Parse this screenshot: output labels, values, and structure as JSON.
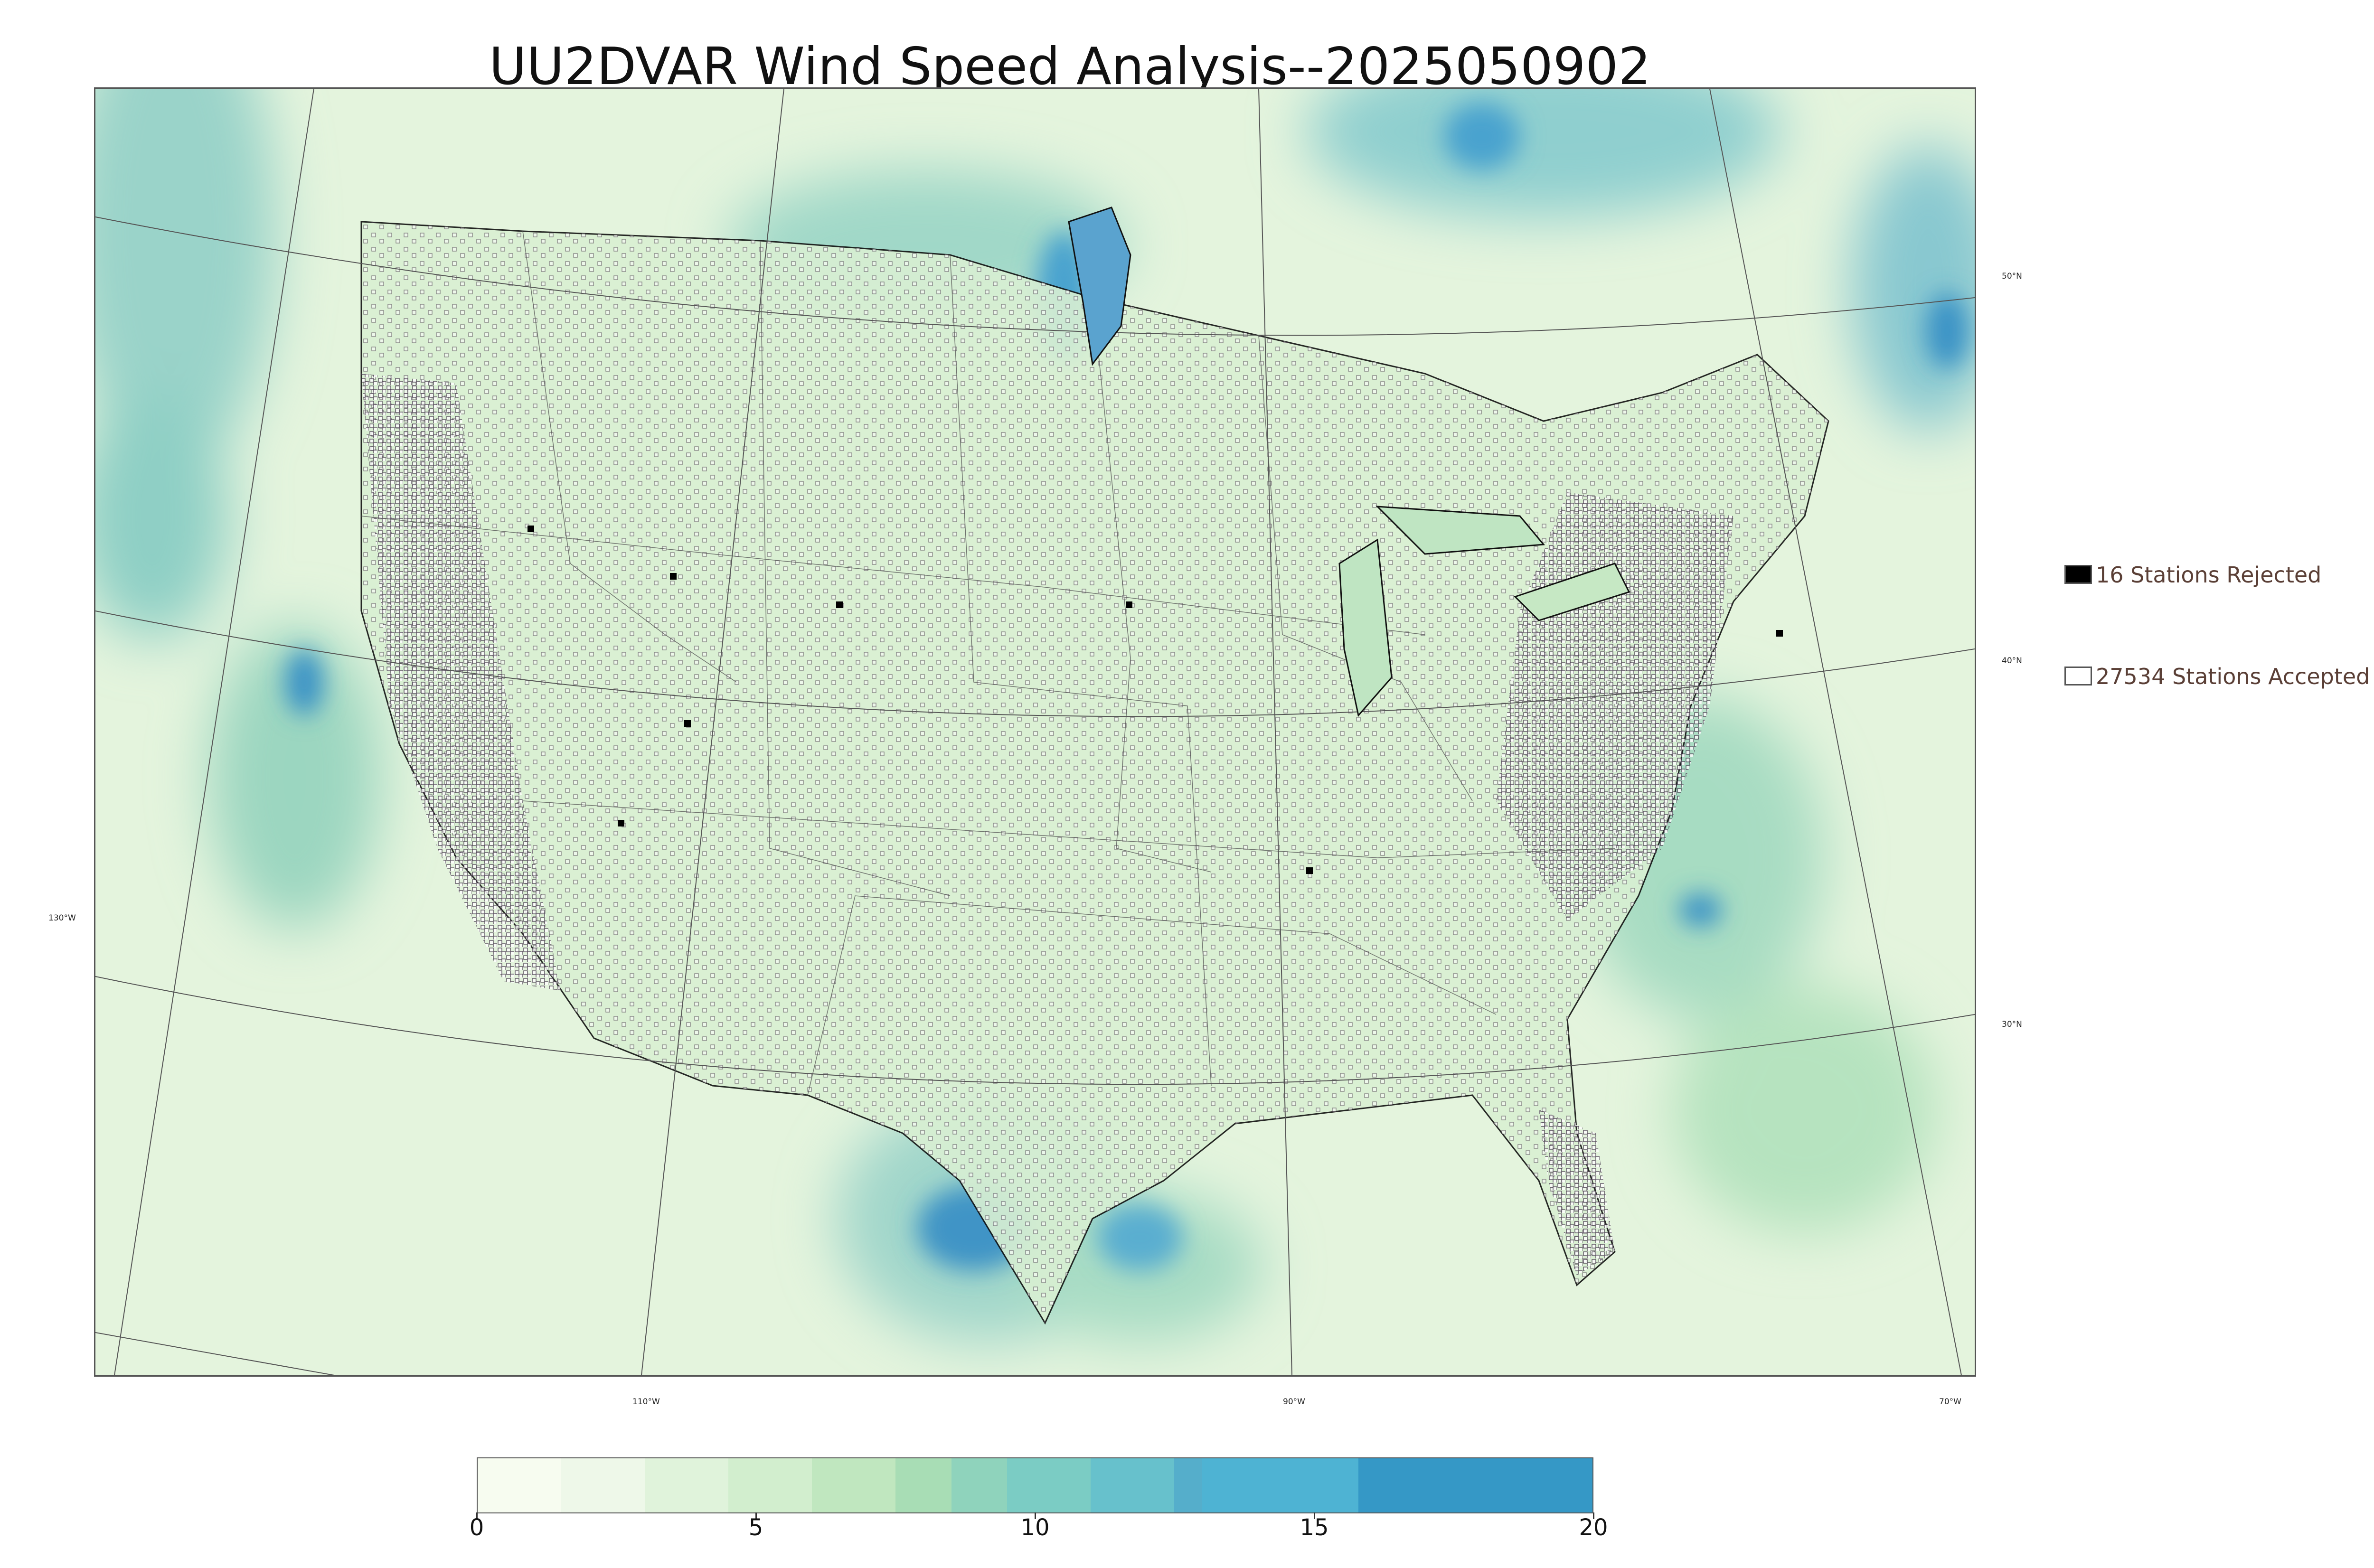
{
  "title": "UU2DVAR Wind Speed Analysis--2025050902",
  "legend": {
    "rejected": {
      "label": "16 Stations Rejected",
      "count": 16,
      "color": "#000000"
    },
    "accepted": {
      "label": "27534 Stations Accepted",
      "count": 27534,
      "color": "#ffffff"
    }
  },
  "graticule": {
    "lat_labels": [
      "50°N",
      "40°N",
      "30°N"
    ],
    "lon_labels": [
      "130°W",
      "110°W",
      "90°W",
      "70°W"
    ]
  },
  "colorbar": {
    "min": 0,
    "max": 20,
    "ticks": [
      "0",
      "5",
      "10",
      "15",
      "20"
    ],
    "colors": [
      "#f7fcf0",
      "#eef8e9",
      "#e0f3db",
      "#d2eece",
      "#c0e7bf",
      "#a8ddb5",
      "#8fd3bc",
      "#7bccc4",
      "#67c1cc",
      "#55aecb",
      "#4eb3d3",
      "#3598c6",
      "#1966a0"
    ],
    "bounds": [
      0,
      1.5,
      3,
      4.5,
      6,
      7.5,
      8.5,
      9.5,
      11,
      12.5,
      13,
      15.8,
      20
    ]
  },
  "colors": {
    "water_high": "#3d97c8",
    "land_base": "#e6f5e0",
    "coast": "#111111",
    "grid": "#555555"
  }
}
